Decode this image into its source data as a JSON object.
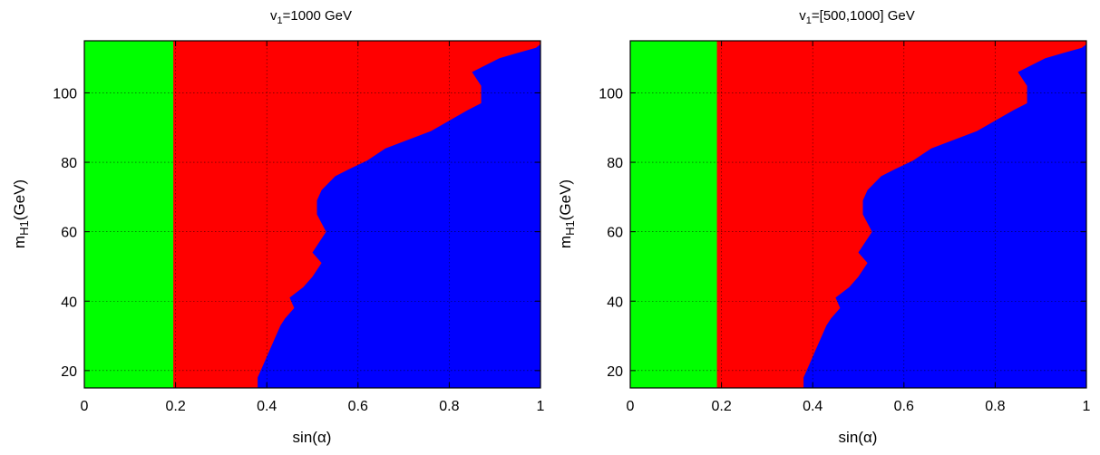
{
  "chart_data": [
    {
      "type": "heatmap",
      "title_base": "v",
      "title_sub": "1",
      "title_rest": "=1000 GeV",
      "xlabel": "sin(α)",
      "ylabel_base": "m",
      "ylabel_sub": "H1",
      "ylabel_rest": "(GeV)",
      "xlim": [
        0,
        1
      ],
      "ylim": [
        15,
        115
      ],
      "xticks": [
        0,
        0.2,
        0.4,
        0.6,
        0.8,
        1
      ],
      "xtick_labels": [
        "0",
        "0.2",
        "0.4",
        "0.6",
        "0.8",
        "1"
      ],
      "yticks": [
        20,
        40,
        60,
        80,
        100
      ],
      "ytick_labels": [
        "20",
        "40",
        "60",
        "80",
        "100"
      ],
      "grid": true,
      "regions": [
        {
          "color": "#00ff00",
          "x_max": 0.195
        },
        {
          "color": "#ff0000"
        },
        {
          "color": "#0000ff",
          "boundary": [
            [
              1.0,
              114
            ],
            [
              0.99,
              113
            ],
            [
              0.95,
              111.5
            ],
            [
              0.91,
              110
            ],
            [
              0.85,
              106
            ],
            [
              0.87,
              102
            ],
            [
              0.87,
              97
            ],
            [
              0.84,
              95
            ],
            [
              0.8,
              92
            ],
            [
              0.76,
              89
            ],
            [
              0.72,
              87
            ],
            [
              0.66,
              84
            ],
            [
              0.62,
              80.5
            ],
            [
              0.58,
              78
            ],
            [
              0.55,
              76
            ],
            [
              0.52,
              72
            ],
            [
              0.51,
              69
            ],
            [
              0.51,
              65
            ],
            [
              0.53,
              60
            ],
            [
              0.5,
              54
            ],
            [
              0.52,
              51
            ],
            [
              0.5,
              47
            ],
            [
              0.48,
              44
            ],
            [
              0.45,
              41
            ],
            [
              0.46,
              38
            ],
            [
              0.44,
              35
            ],
            [
              0.43,
              33
            ],
            [
              0.4,
              24
            ],
            [
              0.39,
              21
            ],
            [
              0.38,
              18
            ],
            [
              0.38,
              15
            ]
          ]
        }
      ]
    },
    {
      "type": "heatmap",
      "title_base": "v",
      "title_sub": "1",
      "title_rest": "=[500,1000] GeV",
      "xlabel": "sin(α)",
      "ylabel_base": "m",
      "ylabel_sub": "H1",
      "ylabel_rest": "(GeV)",
      "xlim": [
        0,
        1
      ],
      "ylim": [
        15,
        115
      ],
      "xticks": [
        0,
        0.2,
        0.4,
        0.6,
        0.8,
        1
      ],
      "xtick_labels": [
        "0",
        "0.2",
        "0.4",
        "0.6",
        "0.8",
        "1"
      ],
      "yticks": [
        20,
        40,
        60,
        80,
        100
      ],
      "ytick_labels": [
        "20",
        "40",
        "60",
        "80",
        "100"
      ],
      "grid": true,
      "regions": [
        {
          "color": "#00ff00",
          "x_max": 0.19
        },
        {
          "color": "#ff0000"
        },
        {
          "color": "#0000ff",
          "boundary": [
            [
              1.0,
              114
            ],
            [
              0.99,
              113
            ],
            [
              0.95,
              111.5
            ],
            [
              0.91,
              110
            ],
            [
              0.85,
              106
            ],
            [
              0.87,
              102
            ],
            [
              0.87,
              97
            ],
            [
              0.84,
              95
            ],
            [
              0.8,
              92
            ],
            [
              0.76,
              89
            ],
            [
              0.72,
              87
            ],
            [
              0.66,
              84
            ],
            [
              0.62,
              80.5
            ],
            [
              0.58,
              78
            ],
            [
              0.55,
              76
            ],
            [
              0.52,
              72
            ],
            [
              0.51,
              69
            ],
            [
              0.51,
              65
            ],
            [
              0.53,
              60
            ],
            [
              0.5,
              54
            ],
            [
              0.52,
              51
            ],
            [
              0.5,
              47
            ],
            [
              0.48,
              44
            ],
            [
              0.45,
              41
            ],
            [
              0.46,
              38
            ],
            [
              0.44,
              35
            ],
            [
              0.43,
              33
            ],
            [
              0.4,
              24
            ],
            [
              0.39,
              21
            ],
            [
              0.38,
              18
            ],
            [
              0.38,
              15
            ]
          ]
        }
      ]
    }
  ]
}
